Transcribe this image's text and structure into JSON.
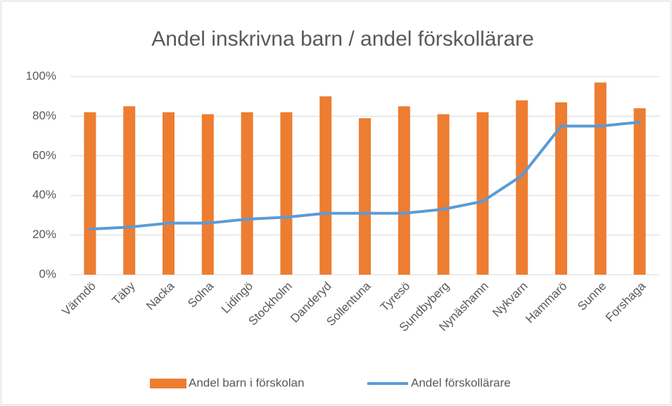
{
  "chart_data": {
    "type": "bar",
    "title": "Andel inskrivna barn / andel förskollärare",
    "categories": [
      "Värmdö",
      "Täby",
      "Nacka",
      "Solna",
      "Lidingö",
      "Stockholm",
      "Danderyd",
      "Sollentuna",
      "Tyresö",
      "Sundbyberg",
      "Nynäshamn",
      "Nykvarn",
      "Hammarö",
      "Sunne",
      "Forshaga"
    ],
    "series": [
      {
        "name": "Andel barn i förskolan",
        "type": "bar",
        "color": "#ed7d31",
        "values": [
          82,
          85,
          82,
          81,
          82,
          82,
          90,
          79,
          85,
          81,
          82,
          88,
          87,
          97,
          84
        ]
      },
      {
        "name": "Andel förskollärare",
        "type": "line",
        "color": "#5b9bd5",
        "values": [
          23,
          24,
          26,
          26,
          28,
          29,
          31,
          31,
          31,
          33,
          37,
          50,
          75,
          75,
          77
        ]
      }
    ],
    "ylim": [
      0,
      100
    ],
    "yticks": [
      {
        "value": 0,
        "label": "0%"
      },
      {
        "value": 20,
        "label": "20%"
      },
      {
        "value": 40,
        "label": "40%"
      },
      {
        "value": 60,
        "label": "60%"
      },
      {
        "value": 80,
        "label": "80%"
      },
      {
        "value": 100,
        "label": "100%"
      }
    ],
    "grid": true,
    "legend": "bottom"
  }
}
